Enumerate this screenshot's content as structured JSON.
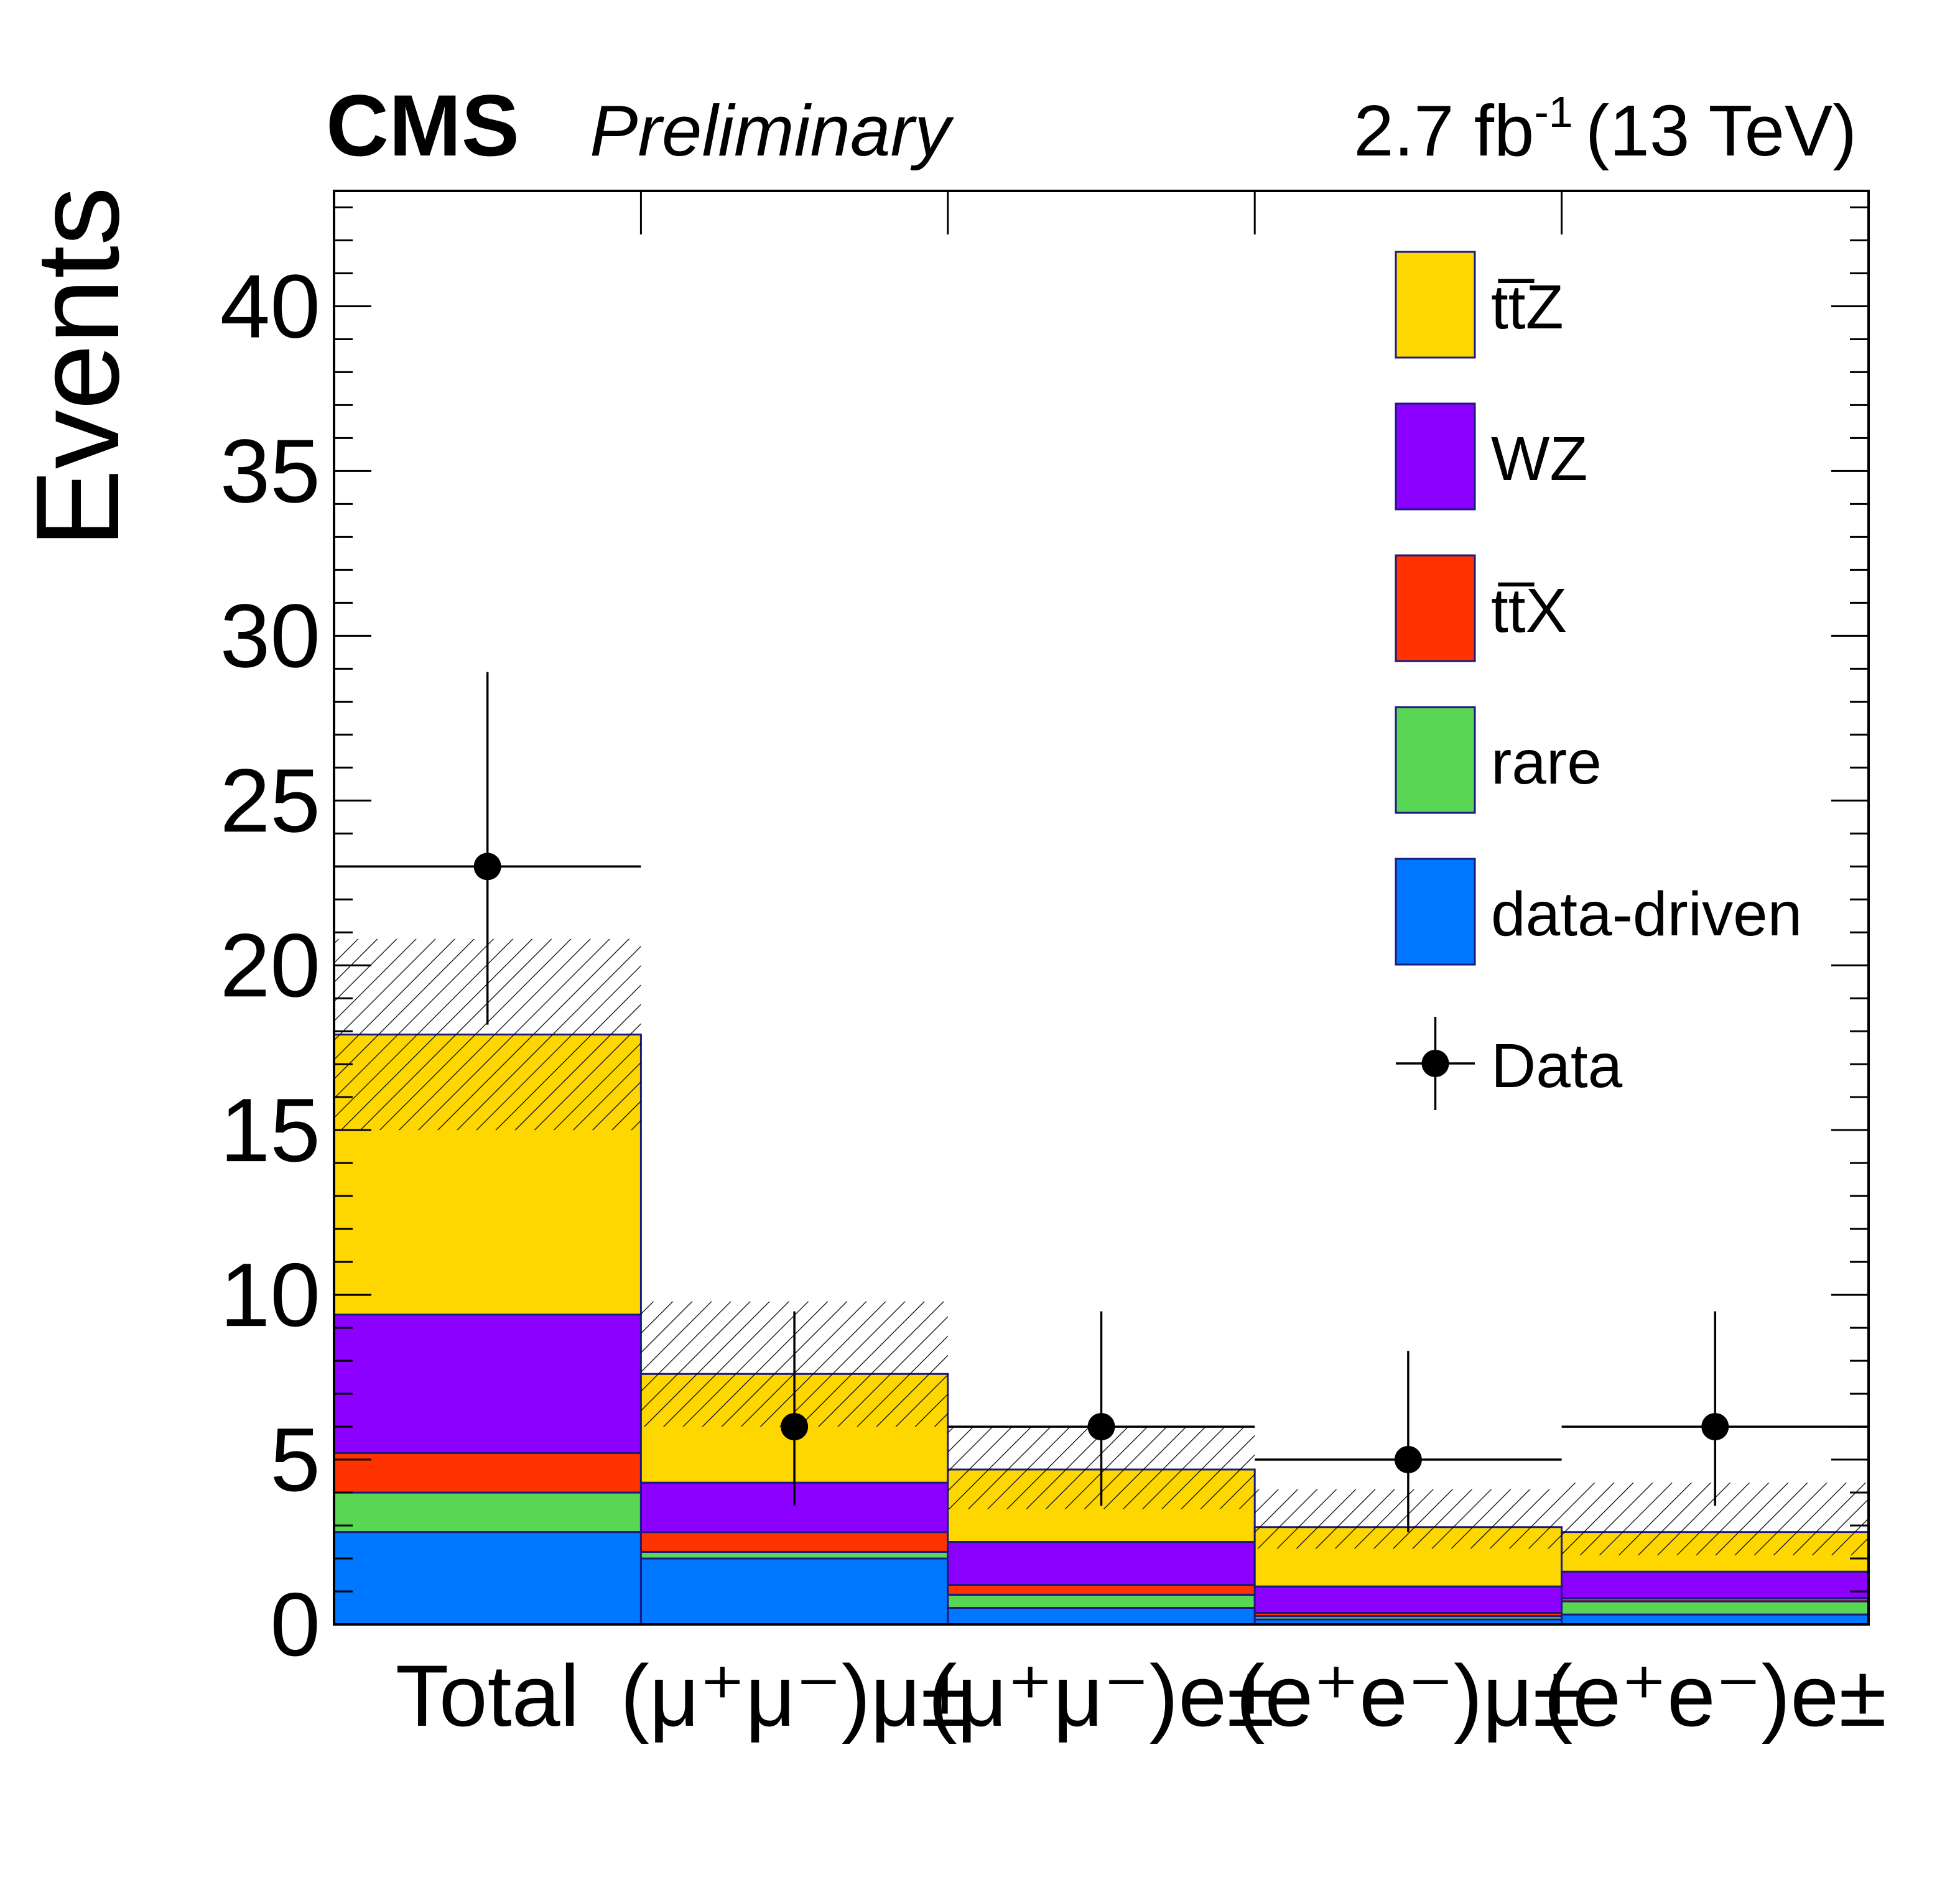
{
  "header": {
    "experiment": "CMS",
    "status": "Preliminary",
    "lumi_value": "2.7 fb",
    "lumi_exponent": "-1",
    "energy": "(13 TeV)"
  },
  "chart_data": {
    "type": "bar",
    "stacked": true,
    "ylabel": "Events",
    "xlabel": "",
    "ylim": [
      0,
      43.5
    ],
    "yticks": [
      0,
      5,
      10,
      15,
      20,
      25,
      30,
      35,
      40
    ],
    "grid": false,
    "legend_position": "top-right",
    "categories": [
      "Total",
      "(μ⁺μ⁻)μ±",
      "(μ⁺μ⁻)e±",
      "(e⁺e⁻)μ±",
      "(e⁺e⁻)e±"
    ],
    "series": [
      {
        "name": "data-driven",
        "color": "#0077FF",
        "values": [
          2.8,
          2.0,
          0.5,
          0.15,
          0.3
        ]
      },
      {
        "name": "rare",
        "color": "#59D654",
        "values": [
          1.2,
          0.2,
          0.4,
          0.1,
          0.4
        ]
      },
      {
        "name": "tt̅X",
        "color": "#FF3300",
        "values": [
          1.2,
          0.6,
          0.3,
          0.1,
          0.1
        ]
      },
      {
        "name": "WZ",
        "color": "#8B00FF",
        "values": [
          4.2,
          1.5,
          1.3,
          0.8,
          0.8
        ]
      },
      {
        "name": "tt̅Z",
        "color": "#FFD700",
        "values": [
          8.5,
          3.3,
          2.2,
          1.8,
          1.2
        ]
      }
    ],
    "uncertainty": {
      "low": [
        15.0,
        6.0,
        3.5,
        2.3,
        2.1
      ],
      "high": [
        20.8,
        9.8,
        6.0,
        4.1,
        4.3
      ]
    },
    "data": {
      "name": "Data",
      "values": [
        23,
        6,
        6,
        5,
        6
      ],
      "err_low": [
        18.2,
        3.6,
        3.6,
        2.8,
        3.6
      ],
      "err_high": [
        28.9,
        9.5,
        9.5,
        8.3,
        9.5
      ],
      "show_xerr": [
        true,
        false,
        true,
        true,
        true
      ]
    }
  }
}
